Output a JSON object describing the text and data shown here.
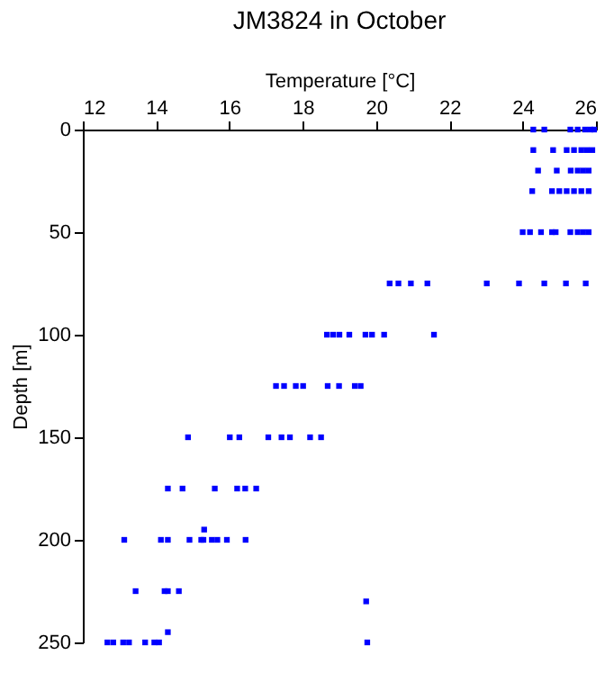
{
  "chart_data": {
    "type": "scatter",
    "title": "JM3824 in October",
    "xlabel": "Temperature [°C]",
    "ylabel": "Depth [m]",
    "x": [
      24.29,
      24.59,
      25.3,
      25.5,
      25.7,
      25.85,
      25.95,
      24.29,
      24.83,
      25.2,
      25.4,
      25.6,
      25.75,
      25.9,
      24.42,
      24.93,
      25.31,
      25.5,
      25.65,
      25.8,
      24.26,
      24.8,
      25.0,
      25.2,
      25.4,
      25.6,
      25.8,
      24.0,
      24.2,
      24.5,
      24.8,
      24.9,
      25.3,
      25.5,
      25.65,
      25.8,
      20.37,
      20.61,
      20.95,
      21.4,
      23.02,
      23.9,
      24.59,
      25.18,
      25.72,
      18.66,
      18.83,
      19.0,
      19.27,
      19.71,
      19.89,
      20.22,
      21.58,
      17.27,
      17.49,
      17.81,
      18.01,
      18.68,
      18.99,
      19.42,
      19.58,
      14.87,
      16.01,
      16.27,
      17.06,
      17.42,
      17.65,
      18.2,
      18.5,
      14.32,
      14.72,
      15.6,
      16.21,
      16.43,
      16.73,
      15.31,
      13.13,
      14.13,
      14.32,
      14.91,
      15.23,
      15.29,
      15.52,
      15.67,
      15.93,
      16.44,
      13.44,
      14.23,
      14.32,
      14.62,
      19.73,
      14.32,
      12.67,
      12.83,
      13.1,
      13.26,
      13.7,
      13.95,
      14.08,
      19.76
    ],
    "values": [
      0,
      0,
      0,
      0,
      0,
      0,
      0,
      10,
      10,
      10,
      10,
      10,
      10,
      10,
      20,
      20,
      20,
      20,
      20,
      20,
      30,
      30,
      30,
      30,
      30,
      30,
      30,
      50,
      50,
      50,
      50,
      50,
      50,
      50,
      50,
      50,
      75,
      75,
      75,
      75,
      75,
      75,
      75,
      75,
      75,
      100,
      100,
      100,
      100,
      100,
      100,
      100,
      100,
      125,
      125,
      125,
      125,
      125,
      125,
      125,
      125,
      150,
      150,
      150,
      150,
      150,
      150,
      150,
      150,
      175,
      175,
      175,
      175,
      175,
      175,
      195,
      200,
      200,
      200,
      200,
      200,
      200,
      200,
      200,
      200,
      200,
      225,
      225,
      225,
      225,
      230,
      245,
      250,
      250,
      250,
      250,
      250,
      250,
      250,
      250
    ],
    "color": "#0000ff",
    "marker": "square",
    "xlim": [
      12,
      26
    ],
    "xticks": [
      12,
      14,
      16,
      18,
      20,
      22,
      24,
      26
    ],
    "ylim": [
      250,
      0
    ],
    "yticks": [
      0,
      50,
      100,
      150,
      200,
      250
    ],
    "grid": false
  }
}
